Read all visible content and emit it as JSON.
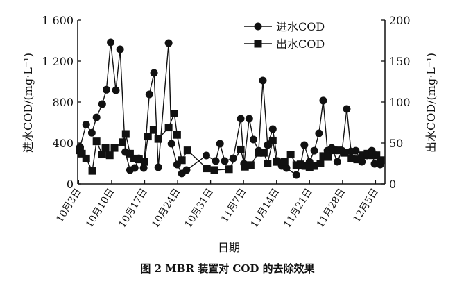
{
  "chart_data": {
    "type": "line",
    "title": "",
    "caption": "图 2   MBR 装置对 COD 的去除效果",
    "xlabel": "日期",
    "ylabel_left": "进水COD/(mg·L⁻¹)",
    "ylabel_right": "出水COD/(mg·L⁻¹)",
    "x_unit": "days since 10月3日",
    "xlim": [
      -0.2,
      65
    ],
    "ylim_left": [
      0,
      1600
    ],
    "ylim_right": [
      0,
      200
    ],
    "x_ticks": [
      {
        "x": 0,
        "label": "10月3日"
      },
      {
        "x": 7,
        "label": "10月10日"
      },
      {
        "x": 14,
        "label": "10月17日"
      },
      {
        "x": 21,
        "label": "10月24日"
      },
      {
        "x": 28,
        "label": "10月31日"
      },
      {
        "x": 35,
        "label": "11月7日"
      },
      {
        "x": 42,
        "label": "11月14日"
      },
      {
        "x": 49,
        "label": "11月21日"
      },
      {
        "x": 56,
        "label": "11月28日"
      },
      {
        "x": 63,
        "label": "12月5日"
      }
    ],
    "y_ticks_left": [
      {
        "v": 0,
        "label": "0"
      },
      {
        "v": 400,
        "label": "400"
      },
      {
        "v": 800,
        "label": "800"
      },
      {
        "v": 1200,
        "label": "1 200"
      },
      {
        "v": 1600,
        "label": "1 600"
      }
    ],
    "y_ticks_right": [
      {
        "v": 0,
        "label": "0"
      },
      {
        "v": 50,
        "label": "50"
      },
      {
        "v": 100,
        "label": "100"
      },
      {
        "v": 150,
        "label": "150"
      },
      {
        "v": 200,
        "label": "200"
      }
    ],
    "legend_position": "top-center",
    "series": [
      {
        "name": "进水COD",
        "axis": "left",
        "marker": "circle",
        "x": [
          0.3,
          1.6,
          2.8,
          3.8,
          5,
          5.9,
          6.8,
          7.9,
          8.8,
          9.9,
          10.9,
          11.9,
          12.8,
          13.8,
          15,
          16,
          16.9,
          19.1,
          19.7,
          20.9,
          21.9,
          22.9,
          27.1,
          29.1,
          30,
          31,
          32.8,
          34.4,
          35.1,
          36.2,
          37.1,
          38.2,
          39.1,
          40.1,
          41.2,
          42.2,
          43.1,
          44.1,
          46.2,
          47.1,
          47.9,
          49,
          50,
          51,
          51.9,
          52.8,
          53.7,
          54.9,
          55.9,
          56.9,
          57.8,
          58.8,
          60.1,
          61.2,
          62.2,
          62.8,
          64
        ],
        "y": [
          360,
          580,
          500,
          650,
          780,
          920,
          1383,
          915,
          1315,
          312,
          136,
          156,
          250,
          156,
          875,
          1085,
          163,
          1376,
          393,
          190,
          102,
          136,
          278,
          224,
          393,
          224,
          250,
          637,
          197,
          637,
          434,
          325,
          1010,
          380,
          536,
          224,
          176,
          156,
          88,
          183,
          380,
          217,
          325,
          495,
          814,
          325,
          352,
          217,
          325,
          732,
          318,
          325,
          217,
          278,
          325,
          197,
          190
        ]
      },
      {
        "name": "出水COD",
        "axis": "right",
        "marker": "square",
        "x": [
          0.3,
          0.7,
          1.6,
          2.9,
          3.8,
          5,
          5.7,
          6.6,
          7.6,
          9.3,
          10,
          10.9,
          11.8,
          12.8,
          14,
          14.7,
          15.9,
          16.9,
          19.1,
          20.3,
          20.9,
          21.9,
          23.1,
          27.2,
          28.8,
          31.9,
          34.4,
          35.3,
          36.5,
          38.2,
          39.3,
          40.1,
          41.2,
          42,
          43.7,
          45,
          46.2,
          47.1,
          48.1,
          49,
          50,
          51.3,
          51.9,
          52.9,
          54.1,
          55.1,
          56.5,
          57.9,
          59.1,
          60.3,
          61.3,
          62.4,
          63.2,
          64.1
        ],
        "y": [
          41,
          37,
          31,
          16,
          52,
          36,
          44,
          35,
          44,
          51,
          61,
          37,
          31,
          30,
          27,
          58,
          66,
          55,
          69,
          86,
          60,
          29,
          41,
          19,
          17,
          18,
          42,
          21,
          23,
          38,
          38,
          25,
          53,
          27,
          27,
          36,
          23,
          24,
          22,
          20,
          22,
          25,
          34,
          33,
          41,
          41,
          38,
          31,
          30,
          35,
          37,
          35,
          35,
          29
        ]
      }
    ]
  }
}
